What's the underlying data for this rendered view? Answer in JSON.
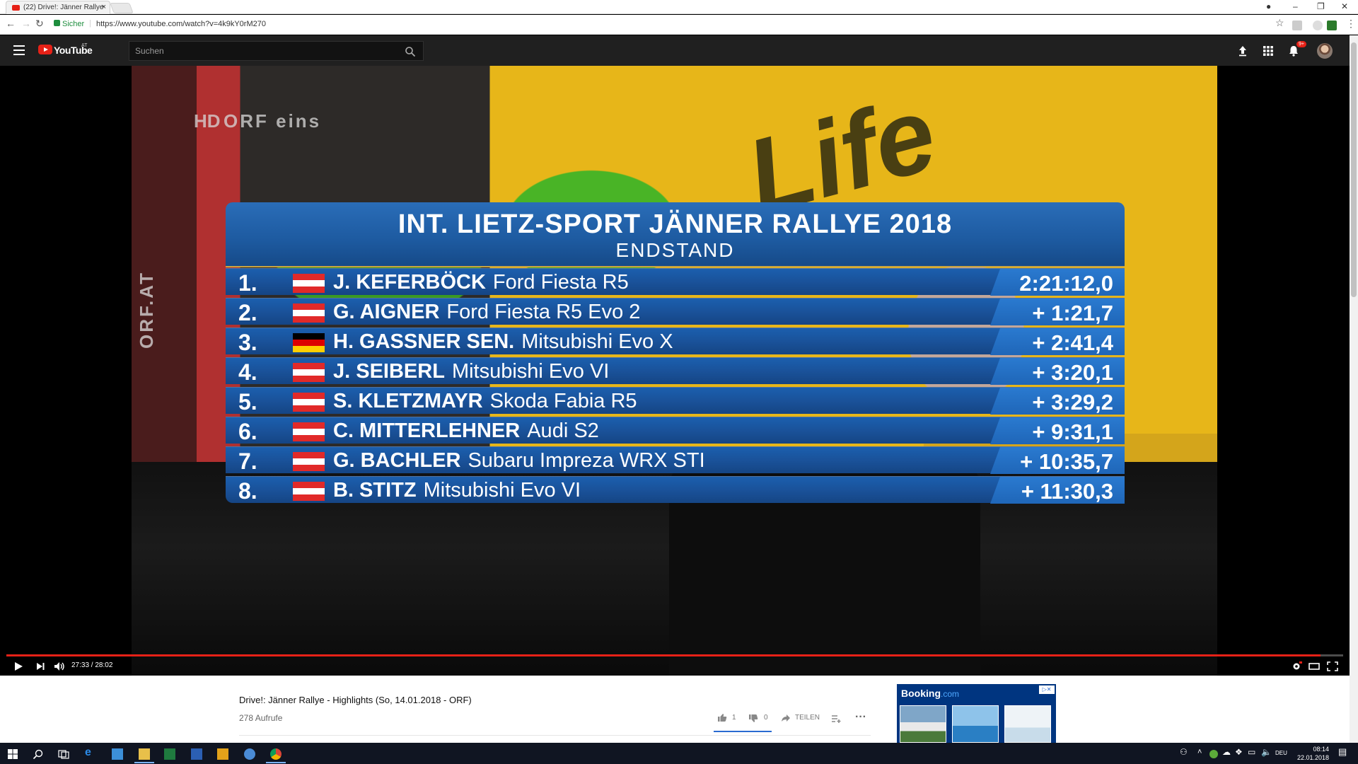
{
  "browser": {
    "tab_title": "(22) Drive!: Jänner Rallye",
    "secure_label": "Sicher",
    "url": "https://www.youtube.com/watch?v=4k9kY0rM270"
  },
  "masthead": {
    "logo_text": "YouTube",
    "region": "AT",
    "search_placeholder": "Suchen",
    "notification_count": "9+"
  },
  "video": {
    "watermark_hd": "HD",
    "watermark_channel": "ORF eins",
    "watermark_side": "ORF.AT",
    "background_sign": "Life",
    "board": {
      "title": "INT. LIETZ-SPORT JÄNNER RALLYE 2018",
      "subtitle": "ENDSTAND",
      "rows": [
        {
          "pos": "1.",
          "flag": "at",
          "driver": "J. KEFERBÖCK",
          "car": "Ford Fiesta R5",
          "time": "2:21:12,0"
        },
        {
          "pos": "2.",
          "flag": "at",
          "driver": "G. AIGNER",
          "car": "Ford Fiesta R5 Evo 2",
          "time": "+ 1:21,7"
        },
        {
          "pos": "3.",
          "flag": "de",
          "driver": "H. GASSNER SEN.",
          "car": "Mitsubishi Evo X",
          "time": "+ 2:41,4"
        },
        {
          "pos": "4.",
          "flag": "at",
          "driver": "J. SEIBERL",
          "car": "Mitsubishi Evo VI",
          "time": "+ 3:20,1"
        },
        {
          "pos": "5.",
          "flag": "at",
          "driver": "S. KLETZMAYR",
          "car": "Skoda Fabia R5",
          "time": "+ 3:29,2"
        },
        {
          "pos": "6.",
          "flag": "at",
          "driver": "C. MITTERLEHNER",
          "car": "Audi S2",
          "time": "+ 9:31,1"
        },
        {
          "pos": "7.",
          "flag": "at",
          "driver": "G. BACHLER",
          "car": "Subaru Impreza WRX STI",
          "time": "+ 10:35,7"
        },
        {
          "pos": "8.",
          "flag": "at",
          "driver": "B. STITZ",
          "car": "Mitsubishi Evo VI",
          "time": "+ 11:30,3"
        }
      ]
    },
    "time_display": "27:33 / 28:02",
    "progress_fraction": 0.983
  },
  "info": {
    "title": "Drive!: Jänner Rallye - Highlights (So, 14.01.2018 - ORF)",
    "views": "278 Aufrufe",
    "likes": "1",
    "dislikes": "0",
    "share_label": "TEILEN"
  },
  "ad": {
    "brand": "Booking",
    "brand_suffix": ".com"
  },
  "taskbar": {
    "lang": "DEU",
    "time": "08:14",
    "date": "22.01.2018"
  },
  "colors": {
    "youtube_red": "#e62117",
    "board_blue": "#1d5aa0",
    "masthead": "#202020"
  }
}
